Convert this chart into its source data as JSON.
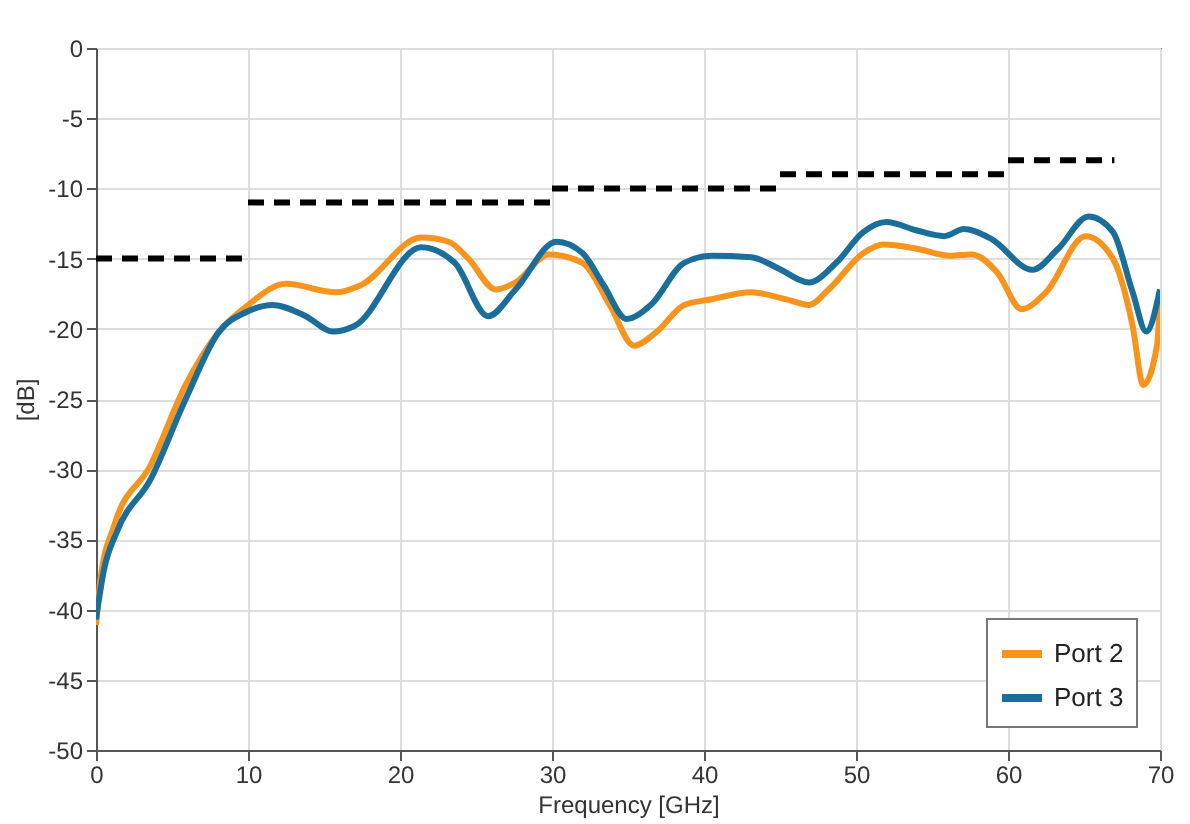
{
  "chart_data": {
    "type": "line",
    "xlabel": "Frequency [GHz]",
    "ylabel": "[dB]",
    "xlim": [
      0,
      70
    ],
    "xticks": [
      0,
      10,
      20,
      30,
      40,
      50,
      60,
      70
    ],
    "ylim": [
      -50,
      0
    ],
    "yticks": [
      -50,
      -45,
      -40,
      -35,
      -30,
      -25,
      -20,
      -15,
      -10,
      -5,
      0
    ],
    "grid": true,
    "legend": "bottom right",
    "series": [
      {
        "name": "Port 2",
        "color": "#f7941d",
        "x": [
          0,
          0.3,
          1.2,
          3.6,
          5.9,
          8.1,
          9.9,
          12.5,
          15.8,
          17.4,
          21.4,
          23.2,
          24.5,
          26.3,
          27.6,
          29.8,
          32,
          33.8,
          35.4,
          36.9,
          38.7,
          40.5,
          43.1,
          45.4,
          46.9,
          48.2,
          50.5,
          51.8,
          54,
          56.2,
          57.6,
          59.3,
          60.9,
          62.5,
          65.1,
          66.9,
          68.2,
          68.9,
          69.8,
          70
        ],
        "values": [
          -41.1,
          -37.8,
          -34,
          -29.7,
          -24,
          -20.2,
          -18.4,
          -16.8,
          -17.4,
          -16.9,
          -13.5,
          -13.8,
          -15,
          -17.2,
          -16.7,
          -14.7,
          -15.3,
          -18.3,
          -21.2,
          -20.2,
          -18.3,
          -17.9,
          -17.4,
          -17.9,
          -18.3,
          -17.2,
          -14.6,
          -14,
          -14.3,
          -14.8,
          -14.7,
          -16,
          -18.6,
          -17.4,
          -13.4,
          -15,
          -19.8,
          -24,
          -21.2,
          -18
        ]
      },
      {
        "name": "Port 3",
        "color": "#1a6e99",
        "x": [
          0,
          0.5,
          1.4,
          3.6,
          5.9,
          8.1,
          9.9,
          11.6,
          13.8,
          15.6,
          17,
          21.4,
          23.6,
          25.8,
          27.6,
          30.3,
          32,
          33.4,
          34.9,
          36.5,
          38.7,
          40.5,
          43.1,
          44.9,
          46.9,
          48.7,
          50.5,
          52,
          54,
          55.8,
          57.1,
          58.9,
          61.6,
          63.3,
          65.3,
          66.9,
          68.2,
          69.1,
          70
        ],
        "values": [
          -40.7,
          -37.3,
          -34.4,
          -30.7,
          -25,
          -20.2,
          -18.8,
          -18.3,
          -19.1,
          -20.2,
          -19.8,
          -14.2,
          -15.3,
          -19.1,
          -17.2,
          -13.8,
          -14.6,
          -16.9,
          -19.3,
          -18.3,
          -15.3,
          -14.8,
          -14.9,
          -15.7,
          -16.7,
          -15.3,
          -13.1,
          -12.4,
          -13,
          -13.4,
          -12.9,
          -13.6,
          -15.8,
          -14.3,
          -12,
          -13.1,
          -17.4,
          -20.2,
          -17.2
        ]
      },
      {
        "color": "#000000",
        "line_style": "dashed",
        "x": [
          0,
          10
        ],
        "values": [
          -15,
          -15
        ]
      },
      {
        "color": "#000000",
        "line_style": "dashed",
        "x": [
          10,
          30
        ],
        "values": [
          -11,
          -11
        ]
      },
      {
        "color": "#000000",
        "line_style": "dashed",
        "x": [
          30,
          45
        ],
        "values": [
          -10,
          -10
        ]
      },
      {
        "color": "#000000",
        "line_style": "dashed",
        "x": [
          45,
          60
        ],
        "values": [
          -9,
          -9
        ]
      },
      {
        "color": "#000000",
        "line_style": "dashed",
        "x": [
          60,
          67
        ],
        "values": [
          -8,
          -8
        ]
      }
    ]
  }
}
